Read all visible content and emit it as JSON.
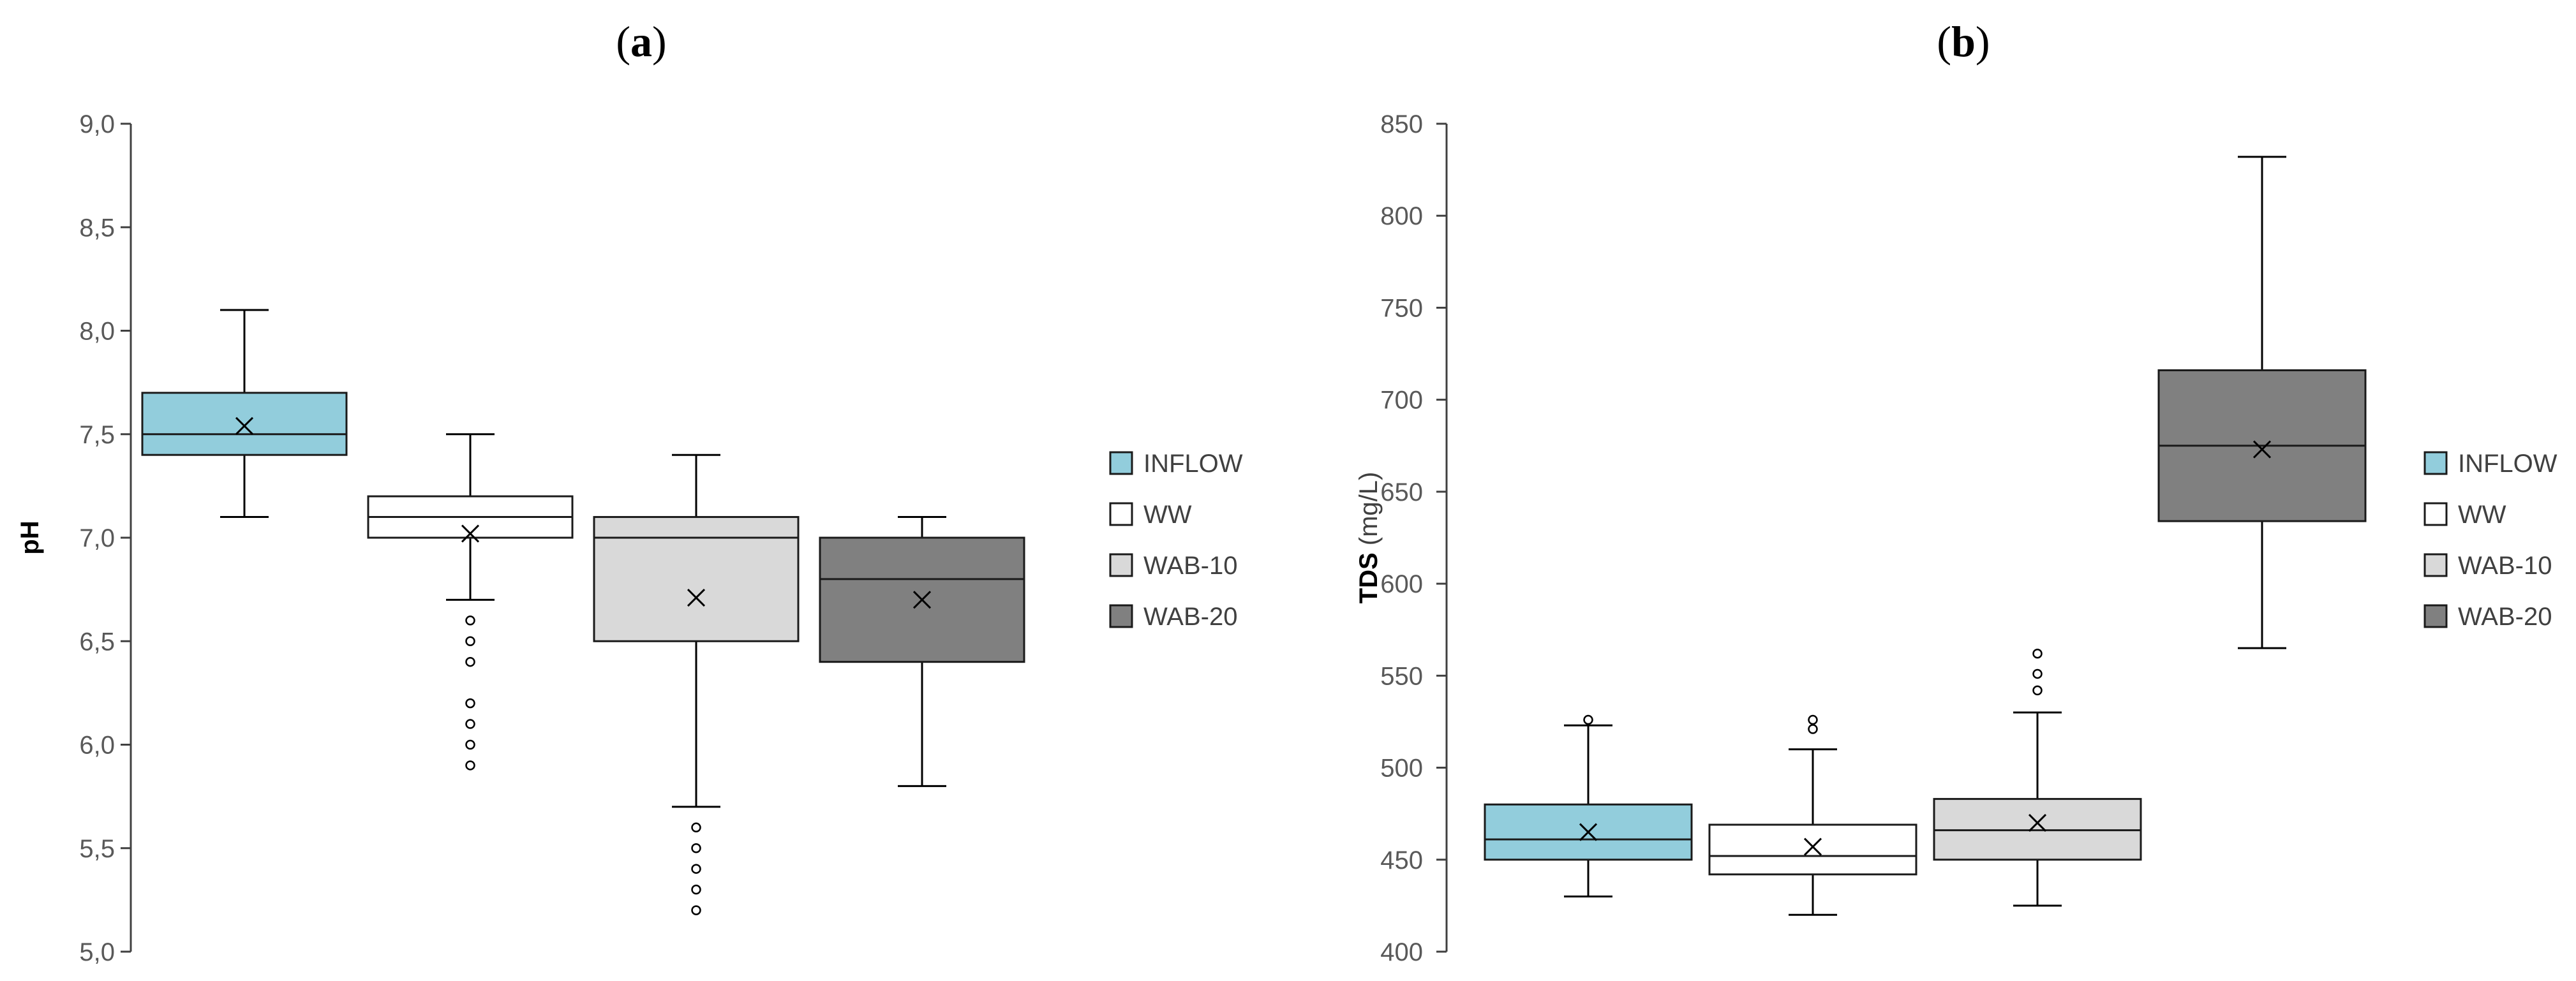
{
  "chart_data": [
    {
      "type": "box",
      "panel_label": "a",
      "ylabel": "pH",
      "ylabel_unit": "",
      "ylim": [
        5.0,
        9.0
      ],
      "yticks": [
        "5,0",
        "5,5",
        "6,0",
        "6,5",
        "7,0",
        "7,5",
        "8,0",
        "8,5",
        "9,0"
      ],
      "ytick_values": [
        5.0,
        5.5,
        6.0,
        6.5,
        7.0,
        7.5,
        8.0,
        8.5,
        9.0
      ],
      "series": [
        {
          "name": "INFLOW",
          "color": "#92cddc",
          "whisker_low": 7.1,
          "q1": 7.4,
          "median": 7.5,
          "q3": 7.7,
          "whisker_high": 8.1,
          "mean": 7.54,
          "outliers": []
        },
        {
          "name": "WW",
          "color": "#ffffff",
          "whisker_low": 6.7,
          "q1": 7.0,
          "median": 7.1,
          "q3": 7.2,
          "whisker_high": 7.5,
          "mean": 7.02,
          "outliers": [
            6.6,
            6.5,
            6.4,
            6.2,
            6.1,
            6.0,
            5.9
          ]
        },
        {
          "name": "WAB-10",
          "color": "#d9d9d9",
          "whisker_low": 5.7,
          "q1": 6.5,
          "median": 7.0,
          "q3": 7.1,
          "whisker_high": 7.4,
          "mean": 6.71,
          "outliers": [
            5.6,
            5.5,
            5.4,
            5.3,
            5.2
          ]
        },
        {
          "name": "WAB-20",
          "color": "#808080",
          "whisker_low": 5.8,
          "q1": 6.4,
          "median": 6.8,
          "q3": 7.0,
          "whisker_high": 7.1,
          "mean": 6.7,
          "outliers": []
        }
      ],
      "legend": [
        "INFLOW",
        "WW",
        "WAB-10",
        "WAB-20"
      ],
      "legend_position": "right"
    },
    {
      "type": "box",
      "panel_label": "b",
      "ylabel": "TDS",
      "ylabel_unit": "(mg/L)",
      "ylim": [
        400,
        850
      ],
      "yticks": [
        "400",
        "450",
        "500",
        "550",
        "600",
        "650",
        "700",
        "750",
        "800",
        "850"
      ],
      "ytick_values": [
        400,
        450,
        500,
        550,
        600,
        650,
        700,
        750,
        800,
        850
      ],
      "series": [
        {
          "name": "INFLOW",
          "color": "#92cddc",
          "whisker_low": 430,
          "q1": 450,
          "median": 461,
          "q3": 480,
          "whisker_high": 523,
          "mean": 465,
          "outliers": [
            526
          ]
        },
        {
          "name": "WW",
          "color": "#ffffff",
          "whisker_low": 420,
          "q1": 442,
          "median": 452,
          "q3": 469,
          "whisker_high": 510,
          "mean": 457,
          "outliers": [
            521,
            526
          ]
        },
        {
          "name": "WAB-10",
          "color": "#d9d9d9",
          "whisker_low": 425,
          "q1": 450,
          "median": 466,
          "q3": 483,
          "whisker_high": 530,
          "mean": 470,
          "outliers": [
            542,
            551,
            562
          ]
        },
        {
          "name": "WAB-20",
          "color": "#808080",
          "whisker_low": 565,
          "q1": 634,
          "median": 675,
          "q3": 716,
          "whisker_high": 832,
          "mean": 673,
          "outliers": []
        }
      ],
      "legend": [
        "INFLOW",
        "WW",
        "WAB-10",
        "WAB-20"
      ],
      "legend_position": "right"
    }
  ]
}
